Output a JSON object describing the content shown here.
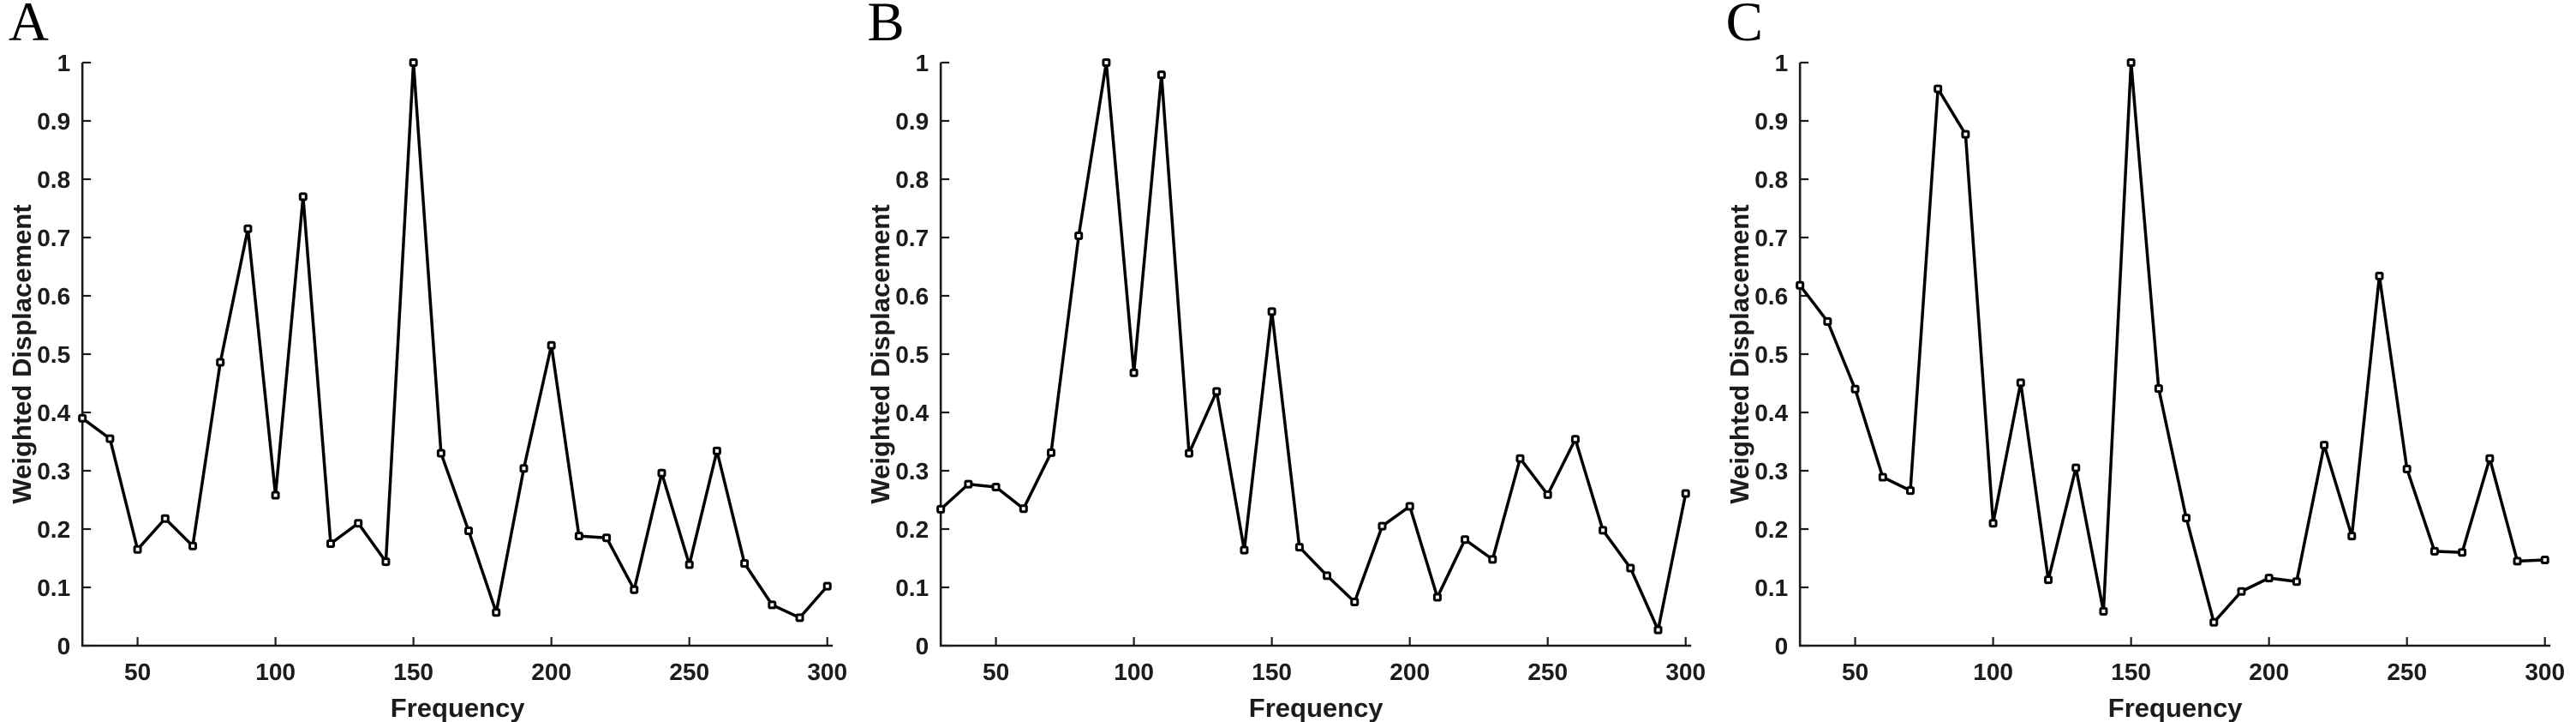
{
  "figure": {
    "background": "#ffffff",
    "axis_color": "#1c1c1c",
    "series_color": "#000000",
    "marker_fill": "#ffffff"
  },
  "chart_data": [
    {
      "type": "line",
      "panel_label": "A",
      "xlabel": "Frequency",
      "ylabel": "Weighted Displacement",
      "x": [
        30,
        40,
        50,
        60,
        70,
        80,
        90,
        100,
        110,
        120,
        130,
        140,
        150,
        160,
        170,
        180,
        190,
        200,
        210,
        220,
        230,
        240,
        250,
        260,
        270,
        280,
        290,
        300
      ],
      "values": [
        0.39,
        0.355,
        0.165,
        0.218,
        0.171,
        0.486,
        0.715,
        0.258,
        0.77,
        0.175,
        0.21,
        0.144,
        1.0,
        0.33,
        0.197,
        0.057,
        0.304,
        0.515,
        0.188,
        0.185,
        0.096,
        0.296,
        0.139,
        0.334,
        0.141,
        0.07,
        0.048,
        0.102
      ],
      "xlim": [
        30,
        302
      ],
      "ylim": [
        0,
        1
      ],
      "xticks": [
        50,
        100,
        150,
        200,
        250,
        300
      ],
      "yticks": [
        0,
        0.1,
        0.2,
        0.3,
        0.4,
        0.5,
        0.6,
        0.7,
        0.8,
        0.9,
        1
      ],
      "ytick_labels": [
        "0",
        "0.1",
        "0.2",
        "0.3",
        "0.4",
        "0.5",
        "0.6",
        "0.7",
        "0.8",
        "0.9",
        "1"
      ],
      "grid": false,
      "legend": "none",
      "marker": "open-square",
      "series_color": "#000000"
    },
    {
      "type": "line",
      "panel_label": "B",
      "xlabel": "Frequency",
      "ylabel": "Weighted Displacement",
      "x": [
        30,
        40,
        50,
        60,
        70,
        80,
        90,
        100,
        110,
        120,
        130,
        140,
        150,
        160,
        170,
        180,
        190,
        200,
        210,
        220,
        230,
        240,
        250,
        260,
        270,
        280,
        290,
        300
      ],
      "values": [
        0.234,
        0.277,
        0.272,
        0.235,
        0.331,
        0.703,
        1.0,
        0.468,
        0.979,
        0.33,
        0.436,
        0.164,
        0.573,
        0.169,
        0.12,
        0.075,
        0.205,
        0.239,
        0.083,
        0.182,
        0.148,
        0.321,
        0.259,
        0.354,
        0.198,
        0.133,
        0.027,
        0.261
      ],
      "xlim": [
        30,
        302
      ],
      "ylim": [
        0,
        1
      ],
      "xticks": [
        50,
        100,
        150,
        200,
        250,
        300
      ],
      "yticks": [
        0,
        0.1,
        0.2,
        0.3,
        0.4,
        0.5,
        0.6,
        0.7,
        0.8,
        0.9,
        1
      ],
      "ytick_labels": [
        "0",
        "0.1",
        "0.2",
        "0.3",
        "0.4",
        "0.5",
        "0.6",
        "0.7",
        "0.8",
        "0.9",
        "1"
      ],
      "grid": false,
      "legend": "none",
      "marker": "open-square",
      "series_color": "#000000"
    },
    {
      "type": "line",
      "panel_label": "C",
      "xlabel": "Frequency",
      "ylabel": "Weighted Displacement",
      "x": [
        30,
        40,
        50,
        60,
        70,
        80,
        90,
        100,
        110,
        120,
        130,
        140,
        150,
        160,
        170,
        180,
        190,
        200,
        210,
        220,
        230,
        240,
        250,
        260,
        270,
        280,
        290,
        300
      ],
      "values": [
        0.618,
        0.556,
        0.44,
        0.289,
        0.266,
        0.955,
        0.877,
        0.21,
        0.451,
        0.113,
        0.305,
        0.059,
        1.0,
        0.441,
        0.219,
        0.04,
        0.093,
        0.116,
        0.11,
        0.344,
        0.188,
        0.634,
        0.303,
        0.162,
        0.16,
        0.321,
        0.145,
        0.147
      ],
      "xlim": [
        30,
        302
      ],
      "ylim": [
        0,
        1
      ],
      "xticks": [
        50,
        100,
        150,
        200,
        250,
        300
      ],
      "yticks": [
        0,
        0.1,
        0.2,
        0.3,
        0.4,
        0.5,
        0.6,
        0.7,
        0.8,
        0.9,
        1
      ],
      "ytick_labels": [
        "0",
        "0.1",
        "0.2",
        "0.3",
        "0.4",
        "0.5",
        "0.6",
        "0.7",
        "0.8",
        "0.9",
        "1"
      ],
      "grid": false,
      "legend": "none",
      "marker": "open-square",
      "series_color": "#000000"
    }
  ]
}
